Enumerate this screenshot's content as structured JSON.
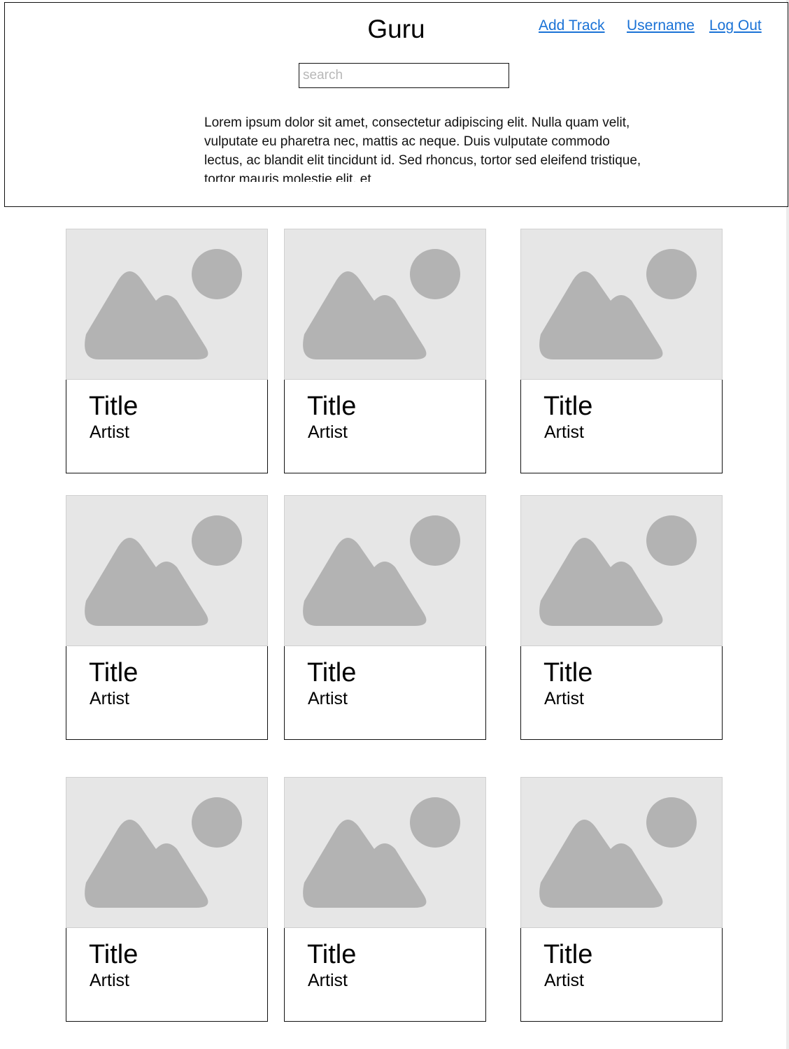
{
  "header": {
    "title": "Guru",
    "nav": {
      "add_track": "Add Track",
      "username": "Username",
      "logout": "Log Out"
    },
    "search": {
      "placeholder": "search",
      "value": ""
    },
    "description": "Lorem ipsum dolor sit amet, consectetur adipiscing elit. Nulla quam velit, vulputate eu pharetra nec, mattis ac neque. Duis vulputate commodo lectus, ac blandit elit tincidunt id. Sed rhoncus, tortor sed eleifend tristique, tortor mauris molestie elit, et"
  },
  "colors": {
    "link": "#1a72d6",
    "placeholder_bg": "#e6e6e6",
    "placeholder_shape": "#b3b3b3"
  },
  "tracks": [
    {
      "title": "Title",
      "artist": "Artist",
      "image_icon": "image-placeholder-icon"
    },
    {
      "title": "Title",
      "artist": "Artist",
      "image_icon": "image-placeholder-icon"
    },
    {
      "title": "Title",
      "artist": "Artist",
      "image_icon": "image-placeholder-icon"
    },
    {
      "title": "Title",
      "artist": "Artist",
      "image_icon": "image-placeholder-icon"
    },
    {
      "title": "Title",
      "artist": "Artist",
      "image_icon": "image-placeholder-icon"
    },
    {
      "title": "Title",
      "artist": "Artist",
      "image_icon": "image-placeholder-icon"
    },
    {
      "title": "Title",
      "artist": "Artist",
      "image_icon": "image-placeholder-icon"
    },
    {
      "title": "Title",
      "artist": "Artist",
      "image_icon": "image-placeholder-icon"
    },
    {
      "title": "Title",
      "artist": "Artist",
      "image_icon": "image-placeholder-icon"
    }
  ]
}
